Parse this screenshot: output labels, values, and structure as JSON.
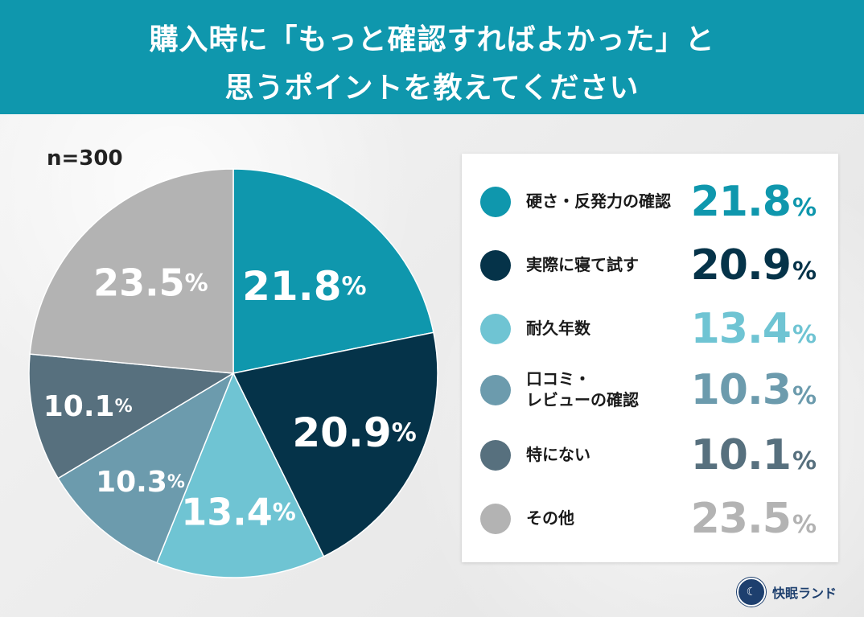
{
  "header": {
    "title_line1": "購入時に「もっと確認すればよかった」と",
    "title_line2": "思うポイントを教えてください"
  },
  "sample_size": "n=300",
  "percent_sign": "%",
  "colors": {
    "header_bg": "#0f97ad",
    "slice_1": "#0f97ad",
    "slice_2": "#053349",
    "slice_3": "#6fc4d3",
    "slice_4": "#6c9bad",
    "slice_5": "#57707e",
    "slice_6": "#b3b3b3"
  },
  "chart_data": {
    "type": "pie",
    "categories": [
      "硬さ・反発力の確認",
      "実際に寝て試す",
      "耐久年数",
      "口コミ・\nレビューの確認",
      "特にない",
      "その他"
    ],
    "values": [
      21.8,
      20.9,
      13.4,
      10.3,
      10.1,
      23.5
    ],
    "labels": [
      "21.8",
      "20.9",
      "13.4",
      "10.3",
      "10.1",
      "23.5"
    ],
    "colors": [
      "#0f97ad",
      "#053349",
      "#6fc4d3",
      "#6c9bad",
      "#57707e",
      "#b3b3b3"
    ],
    "unit": "%",
    "start_angle_deg": 0,
    "direction": "clockwise",
    "legend_position": "right"
  },
  "logo": {
    "icon_name": "kaimin-land-logo-icon",
    "name": "快眠ランド"
  }
}
